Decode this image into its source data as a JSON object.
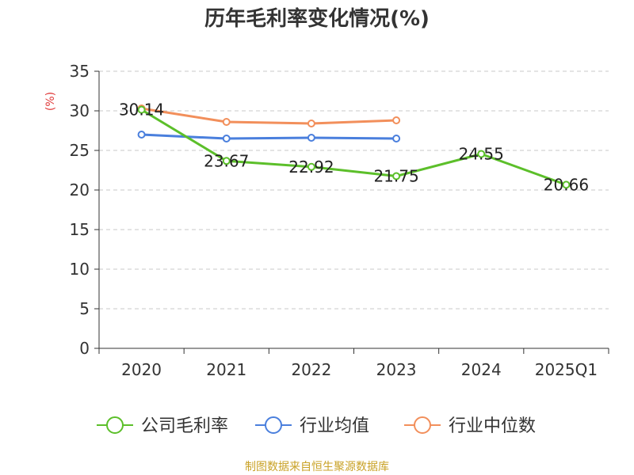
{
  "chart_data": {
    "type": "line",
    "title": "历年毛利率变化情况(%)",
    "ylabel": "(%)",
    "xlabel": "",
    "categories": [
      "2020",
      "2021",
      "2022",
      "2023",
      "2024",
      "2025Q1"
    ],
    "ylim": [
      0,
      35
    ],
    "yticks": [
      0,
      5,
      10,
      15,
      20,
      25,
      30,
      35
    ],
    "grid": true,
    "legend_position": "bottom",
    "series": [
      {
        "name": "公司毛利率",
        "color": "#5cbf2a",
        "values": [
          30.14,
          23.67,
          22.92,
          21.75,
          24.55,
          20.66
        ],
        "show_labels": true
      },
      {
        "name": "行业均值",
        "color": "#4a7fdd",
        "values": [
          27.0,
          26.5,
          26.6,
          26.5,
          null,
          null
        ],
        "show_labels": false
      },
      {
        "name": "行业中位数",
        "color": "#f28f5b",
        "values": [
          30.3,
          28.6,
          28.4,
          28.8,
          null,
          null
        ],
        "show_labels": false
      }
    ]
  },
  "source_text": "制图数据来自恒生聚源数据库",
  "colors": {
    "source": "#c9a227",
    "ylabel": "#e03a3a"
  }
}
